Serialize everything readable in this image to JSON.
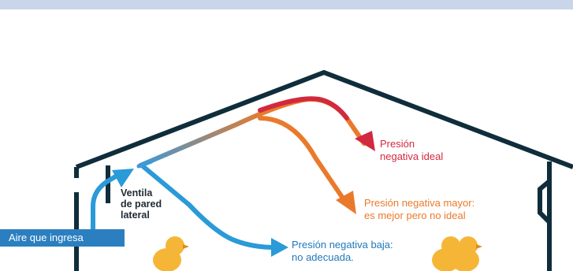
{
  "diagram": {
    "labels": {
      "inlet_vent": "Ventila\nde pared\nlateral",
      "ideal": "Presión\nnegativa ideal",
      "higher": "Presión negativa mayor:\nes mejor pero no ideal",
      "low": "Presión negativa baja:\nno adecuada.",
      "incoming_air": "Aire que ingresa"
    },
    "colors": {
      "wall": "#0f2d3a",
      "ideal": "#d2293f",
      "higher": "#ea7a2b",
      "low": "#2a9ad8",
      "badge": "#2b7fc0",
      "chick": "#f5b638"
    },
    "icons": [
      "chick-icon",
      "chick-icon",
      "chick-icon"
    ]
  }
}
